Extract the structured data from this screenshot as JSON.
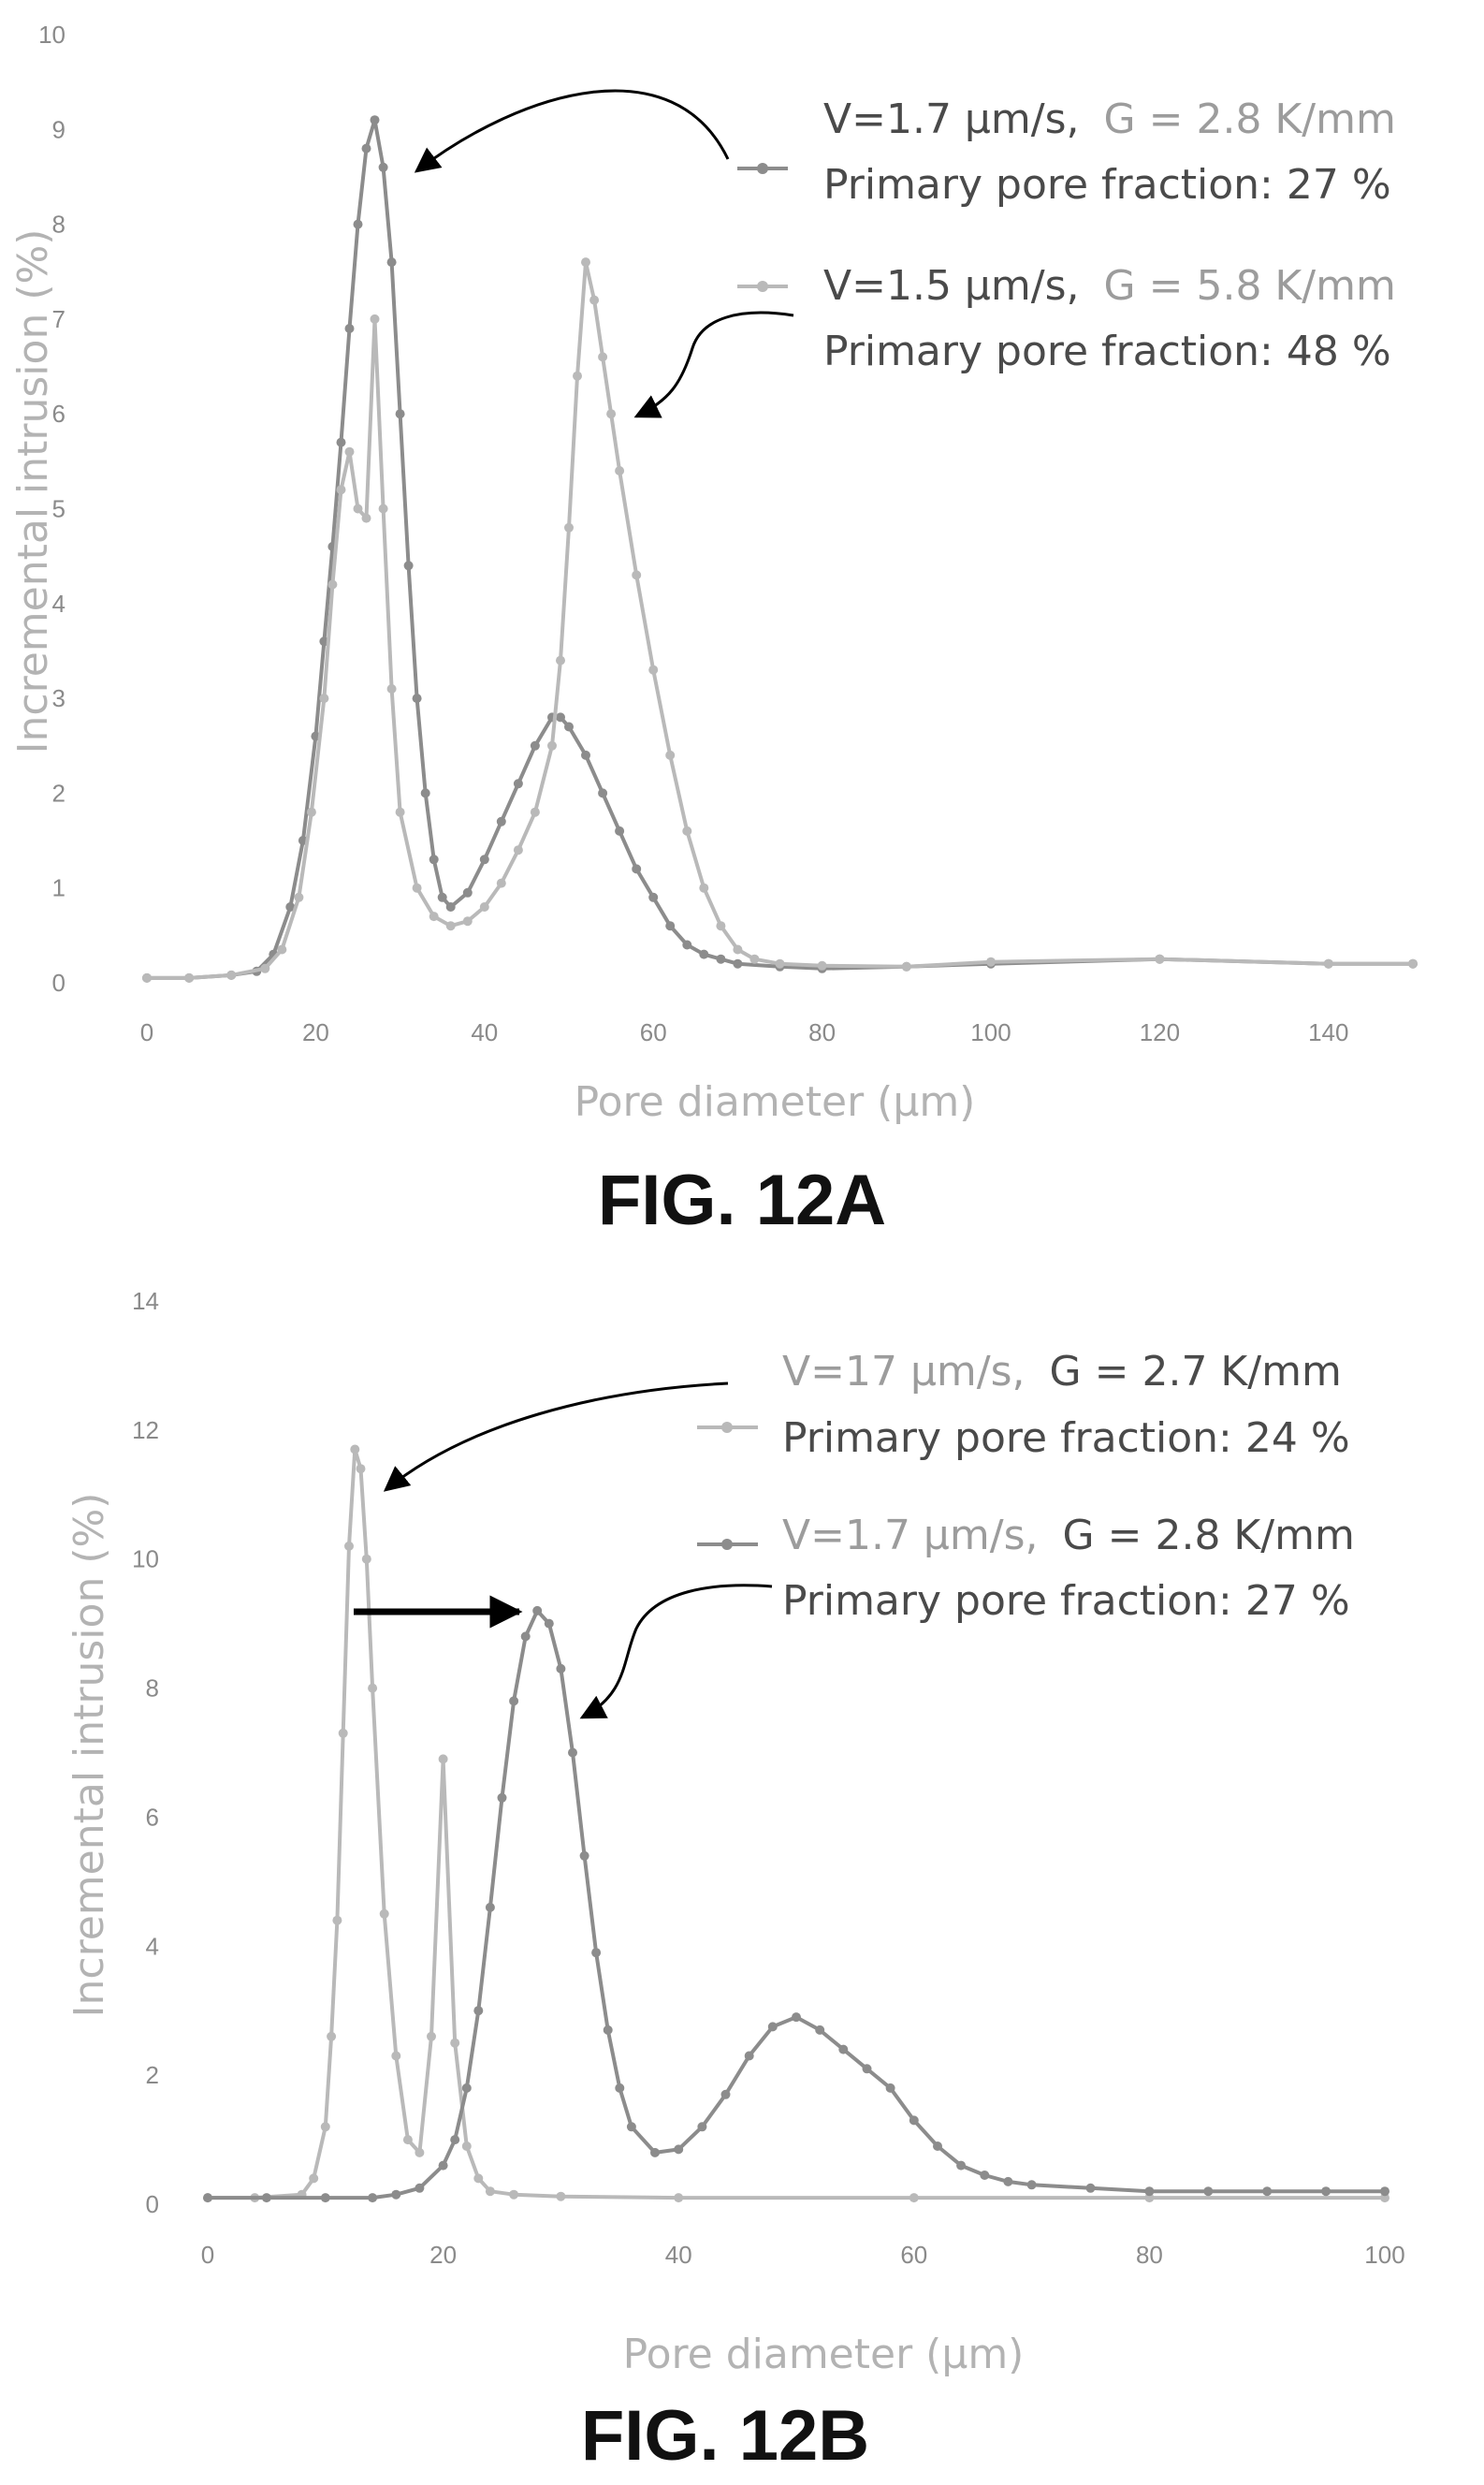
{
  "chart_data": [
    {
      "type": "line",
      "caption": "FIG. 12A",
      "xlabel": "Pore diameter (µm)",
      "ylabel": "Incremental intrusion (%)",
      "xlim": [
        0,
        150
      ],
      "ylim": [
        0,
        10
      ],
      "xticks": [
        "0",
        "20",
        "40",
        "60",
        "80",
        "100",
        "120",
        "140"
      ],
      "yticks": [
        "0",
        "1",
        "2",
        "3",
        "4",
        "5",
        "6",
        "7",
        "8",
        "9",
        "10"
      ],
      "grid": false,
      "series": [
        {
          "name": "V=1.7 µm/s, G = 2.8 K/mm",
          "name_part1": "V=1.7 µm/s,",
          "name_part2": "G = 2.8 K/mm",
          "note": "Primary pore fraction: 27 %",
          "color": "#8c8c8c",
          "x": [
            0,
            5,
            10,
            13,
            15,
            17,
            18.5,
            20,
            21,
            22,
            23,
            24,
            25,
            26,
            27,
            28,
            29,
            30,
            31,
            32,
            33,
            34,
            35,
            36,
            38,
            40,
            42,
            44,
            46,
            48,
            49,
            50,
            52,
            54,
            56,
            58,
            60,
            62,
            64,
            66,
            68,
            70,
            75,
            80,
            90,
            100,
            120,
            140,
            150
          ],
          "y": [
            0.05,
            0.05,
            0.08,
            0.12,
            0.3,
            0.8,
            1.5,
            2.6,
            3.6,
            4.6,
            5.7,
            6.9,
            8.0,
            8.8,
            9.1,
            8.6,
            7.6,
            6.0,
            4.4,
            3.0,
            2.0,
            1.3,
            0.9,
            0.8,
            0.95,
            1.3,
            1.7,
            2.1,
            2.5,
            2.8,
            2.8,
            2.7,
            2.4,
            2.0,
            1.6,
            1.2,
            0.9,
            0.6,
            0.4,
            0.3,
            0.25,
            0.2,
            0.17,
            0.15,
            0.17,
            0.2,
            0.25,
            0.2,
            0.2
          ]
        },
        {
          "name": "V=1.5 µm/s, G = 5.8 K/mm",
          "name_part1": "V=1.5 µm/s,",
          "name_part2": "G = 5.8 K/mm",
          "note": "Primary pore fraction: 48 %",
          "color": "#b9b9b9",
          "x": [
            0,
            5,
            10,
            14,
            16,
            18,
            19.5,
            21,
            22,
            23,
            24,
            25,
            26,
            27,
            28,
            29,
            30,
            32,
            34,
            36,
            38,
            40,
            42,
            44,
            46,
            48,
            49,
            50,
            51,
            52,
            53,
            54,
            55,
            56,
            58,
            60,
            62,
            64,
            66,
            68,
            70,
            72,
            75,
            80,
            90,
            100,
            120,
            140,
            150
          ],
          "y": [
            0.05,
            0.05,
            0.08,
            0.15,
            0.35,
            0.9,
            1.8,
            3.0,
            4.2,
            5.2,
            5.6,
            5.0,
            4.9,
            7.0,
            5.0,
            3.1,
            1.8,
            1.0,
            0.7,
            0.6,
            0.65,
            0.8,
            1.05,
            1.4,
            1.8,
            2.5,
            3.4,
            4.8,
            6.4,
            7.6,
            7.2,
            6.6,
            6.0,
            5.4,
            4.3,
            3.3,
            2.4,
            1.6,
            1.0,
            0.6,
            0.35,
            0.25,
            0.2,
            0.18,
            0.17,
            0.22,
            0.25,
            0.2,
            0.2
          ]
        }
      ]
    },
    {
      "type": "line",
      "caption": "FIG. 12B",
      "xlabel": "Pore diameter (µm)",
      "ylabel": "Incremental intrusion (%)",
      "xlim": [
        0,
        100
      ],
      "ylim": [
        0,
        14
      ],
      "xticks": [
        "0",
        "20",
        "40",
        "60",
        "80",
        "100"
      ],
      "yticks": [
        "0",
        "2",
        "4",
        "6",
        "8",
        "10",
        "12",
        "14"
      ],
      "grid": false,
      "series": [
        {
          "name": "V=17 µm/s, G = 2.7 K/mm",
          "name_part1": "V=17 µm/s,",
          "name_part2": "G = 2.7 K/mm",
          "note": "Primary pore fraction: 24 %",
          "color": "#b9b9b9",
          "x": [
            0,
            4,
            8,
            9,
            10,
            10.5,
            11,
            11.5,
            12,
            12.5,
            13,
            13.5,
            14,
            15,
            16,
            17,
            18,
            19,
            20,
            21,
            22,
            23,
            24,
            26,
            30,
            40,
            60,
            80,
            100
          ],
          "y": [
            0.1,
            0.1,
            0.15,
            0.4,
            1.2,
            2.6,
            4.4,
            7.3,
            10.2,
            11.7,
            11.4,
            10.0,
            8.0,
            4.5,
            2.3,
            1.0,
            0.8,
            2.6,
            6.9,
            2.5,
            0.9,
            0.4,
            0.2,
            0.15,
            0.12,
            0.1,
            0.1,
            0.1,
            0.1
          ]
        },
        {
          "name": "V=1.7 µm/s, G = 2.8 K/mm",
          "name_part1": "V=1.7 µm/s,",
          "name_part2": "G = 2.8 K/mm",
          "note": "Primary pore fraction: 27 %",
          "color": "#8c8c8c",
          "x": [
            0,
            5,
            10,
            14,
            16,
            18,
            20,
            21,
            22,
            23,
            24,
            25,
            26,
            27,
            28,
            29,
            30,
            31,
            32,
            33,
            34,
            35,
            36,
            38,
            40,
            42,
            44,
            46,
            48,
            50,
            52,
            54,
            56,
            58,
            60,
            62,
            64,
            66,
            68,
            70,
            75,
            80,
            85,
            90,
            95,
            100
          ],
          "y": [
            0.1,
            0.1,
            0.1,
            0.1,
            0.15,
            0.25,
            0.6,
            1.0,
            1.8,
            3.0,
            4.6,
            6.3,
            7.8,
            8.8,
            9.2,
            9.0,
            8.3,
            7.0,
            5.4,
            3.9,
            2.7,
            1.8,
            1.2,
            0.8,
            0.85,
            1.2,
            1.7,
            2.3,
            2.75,
            2.9,
            2.7,
            2.4,
            2.1,
            1.8,
            1.3,
            0.9,
            0.6,
            0.45,
            0.35,
            0.3,
            0.25,
            0.2,
            0.2,
            0.2,
            0.2,
            0.2
          ]
        }
      ]
    }
  ]
}
